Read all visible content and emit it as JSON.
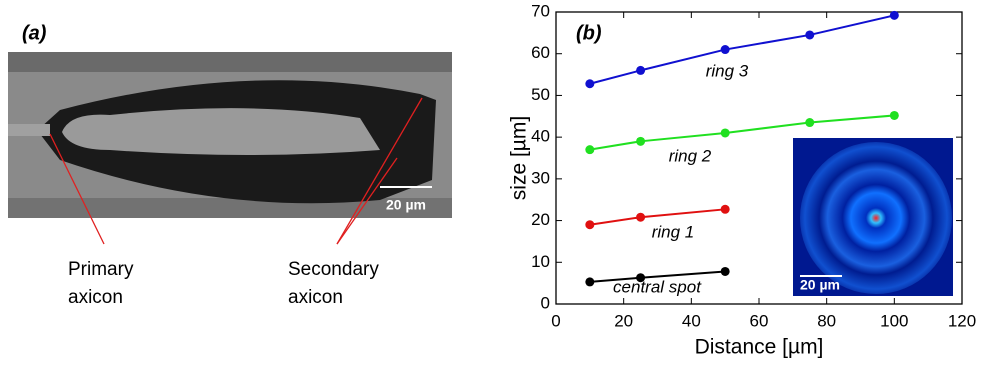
{
  "panel_a": {
    "label": "(a)",
    "scale_bar": "20 µm",
    "annotations": [
      "Primary",
      "axicon",
      "Secondary",
      "axicon"
    ]
  },
  "chart_data": {
    "type": "scatter",
    "label": "(b)",
    "xlabel": "Distance [µm]",
    "ylabel": "size [µm]",
    "xlim": [
      0,
      120
    ],
    "xticks": [
      0,
      20,
      40,
      60,
      80,
      100,
      120
    ],
    "ylim": [
      0,
      70
    ],
    "yticks": [
      0,
      10,
      20,
      30,
      40,
      50,
      60,
      70
    ],
    "series": [
      {
        "name": "ring 3",
        "color": "#1010d0",
        "x": [
          10,
          25,
          50,
          75,
          100
        ],
        "values": [
          52.8,
          56,
          61,
          64.5,
          69.2
        ]
      },
      {
        "name": "ring 2",
        "color": "#20e020",
        "x": [
          10,
          25,
          50,
          75,
          100
        ],
        "values": [
          37,
          39,
          41,
          43.5,
          45.2
        ]
      },
      {
        "name": "ring 1",
        "color": "#e01010",
        "x": [
          10,
          25,
          50
        ],
        "values": [
          19,
          20.8,
          22.7
        ]
      },
      {
        "name": "central spot",
        "color": "#000000",
        "x": [
          10,
          25,
          50
        ],
        "values": [
          5.3,
          6.3,
          7.8
        ]
      }
    ],
    "inset": {
      "scale_bar": "20 µm"
    }
  }
}
